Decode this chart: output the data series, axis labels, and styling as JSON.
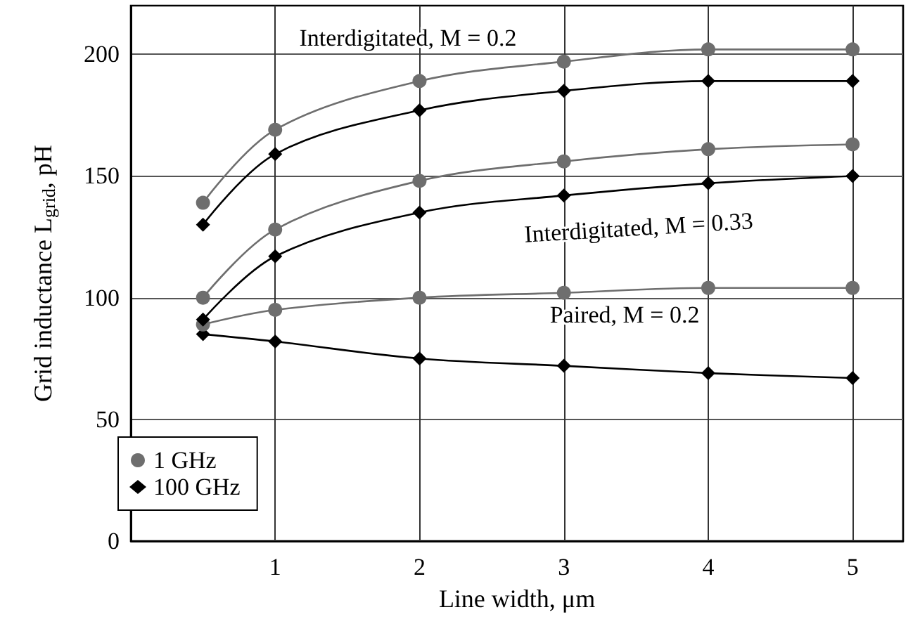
{
  "chart_data": {
    "type": "line",
    "xlabel": "Line width, μm",
    "ylabel": "Grid inductance L$_{grid}$, pH",
    "x": [
      0.5,
      1,
      2,
      3,
      4,
      5
    ],
    "series": [
      {
        "name": "1 GHz",
        "color": "#6e6e6e",
        "marker": "circle",
        "values": [
          139,
          169,
          189,
          197,
          202,
          202
        ]
      },
      {
        "name": "100 GHz",
        "color": "#000000",
        "marker": "diamond",
        "values": [
          130,
          159,
          177,
          185,
          189,
          189
        ]
      },
      {
        "color": "#6e6e6e",
        "marker": "circle",
        "values": [
          100,
          128,
          148,
          156,
          161,
          163
        ]
      },
      {
        "color": "#000000",
        "marker": "diamond",
        "values": [
          91,
          117,
          135,
          142,
          147,
          150
        ]
      },
      {
        "color": "#6e6e6e",
        "marker": "circle",
        "values": [
          89,
          95,
          100,
          102,
          104,
          104
        ]
      },
      {
        "color": "#000000",
        "marker": "diamond",
        "values": [
          85,
          82,
          75,
          72,
          69,
          67
        ]
      }
    ],
    "xlim": [
      0,
      5.35
    ],
    "xticks": [
      1,
      2,
      3,
      4,
      5
    ],
    "ylim": [
      0,
      220
    ],
    "yticks": [
      0,
      50,
      100,
      150,
      200
    ],
    "grid": true,
    "legend": "bottom left",
    "line_style": "solid",
    "annotations": [
      "Interdigitated, M = 0.2",
      "Interdigitated, M = 0.33",
      "Paired, M = 0.2"
    ]
  }
}
